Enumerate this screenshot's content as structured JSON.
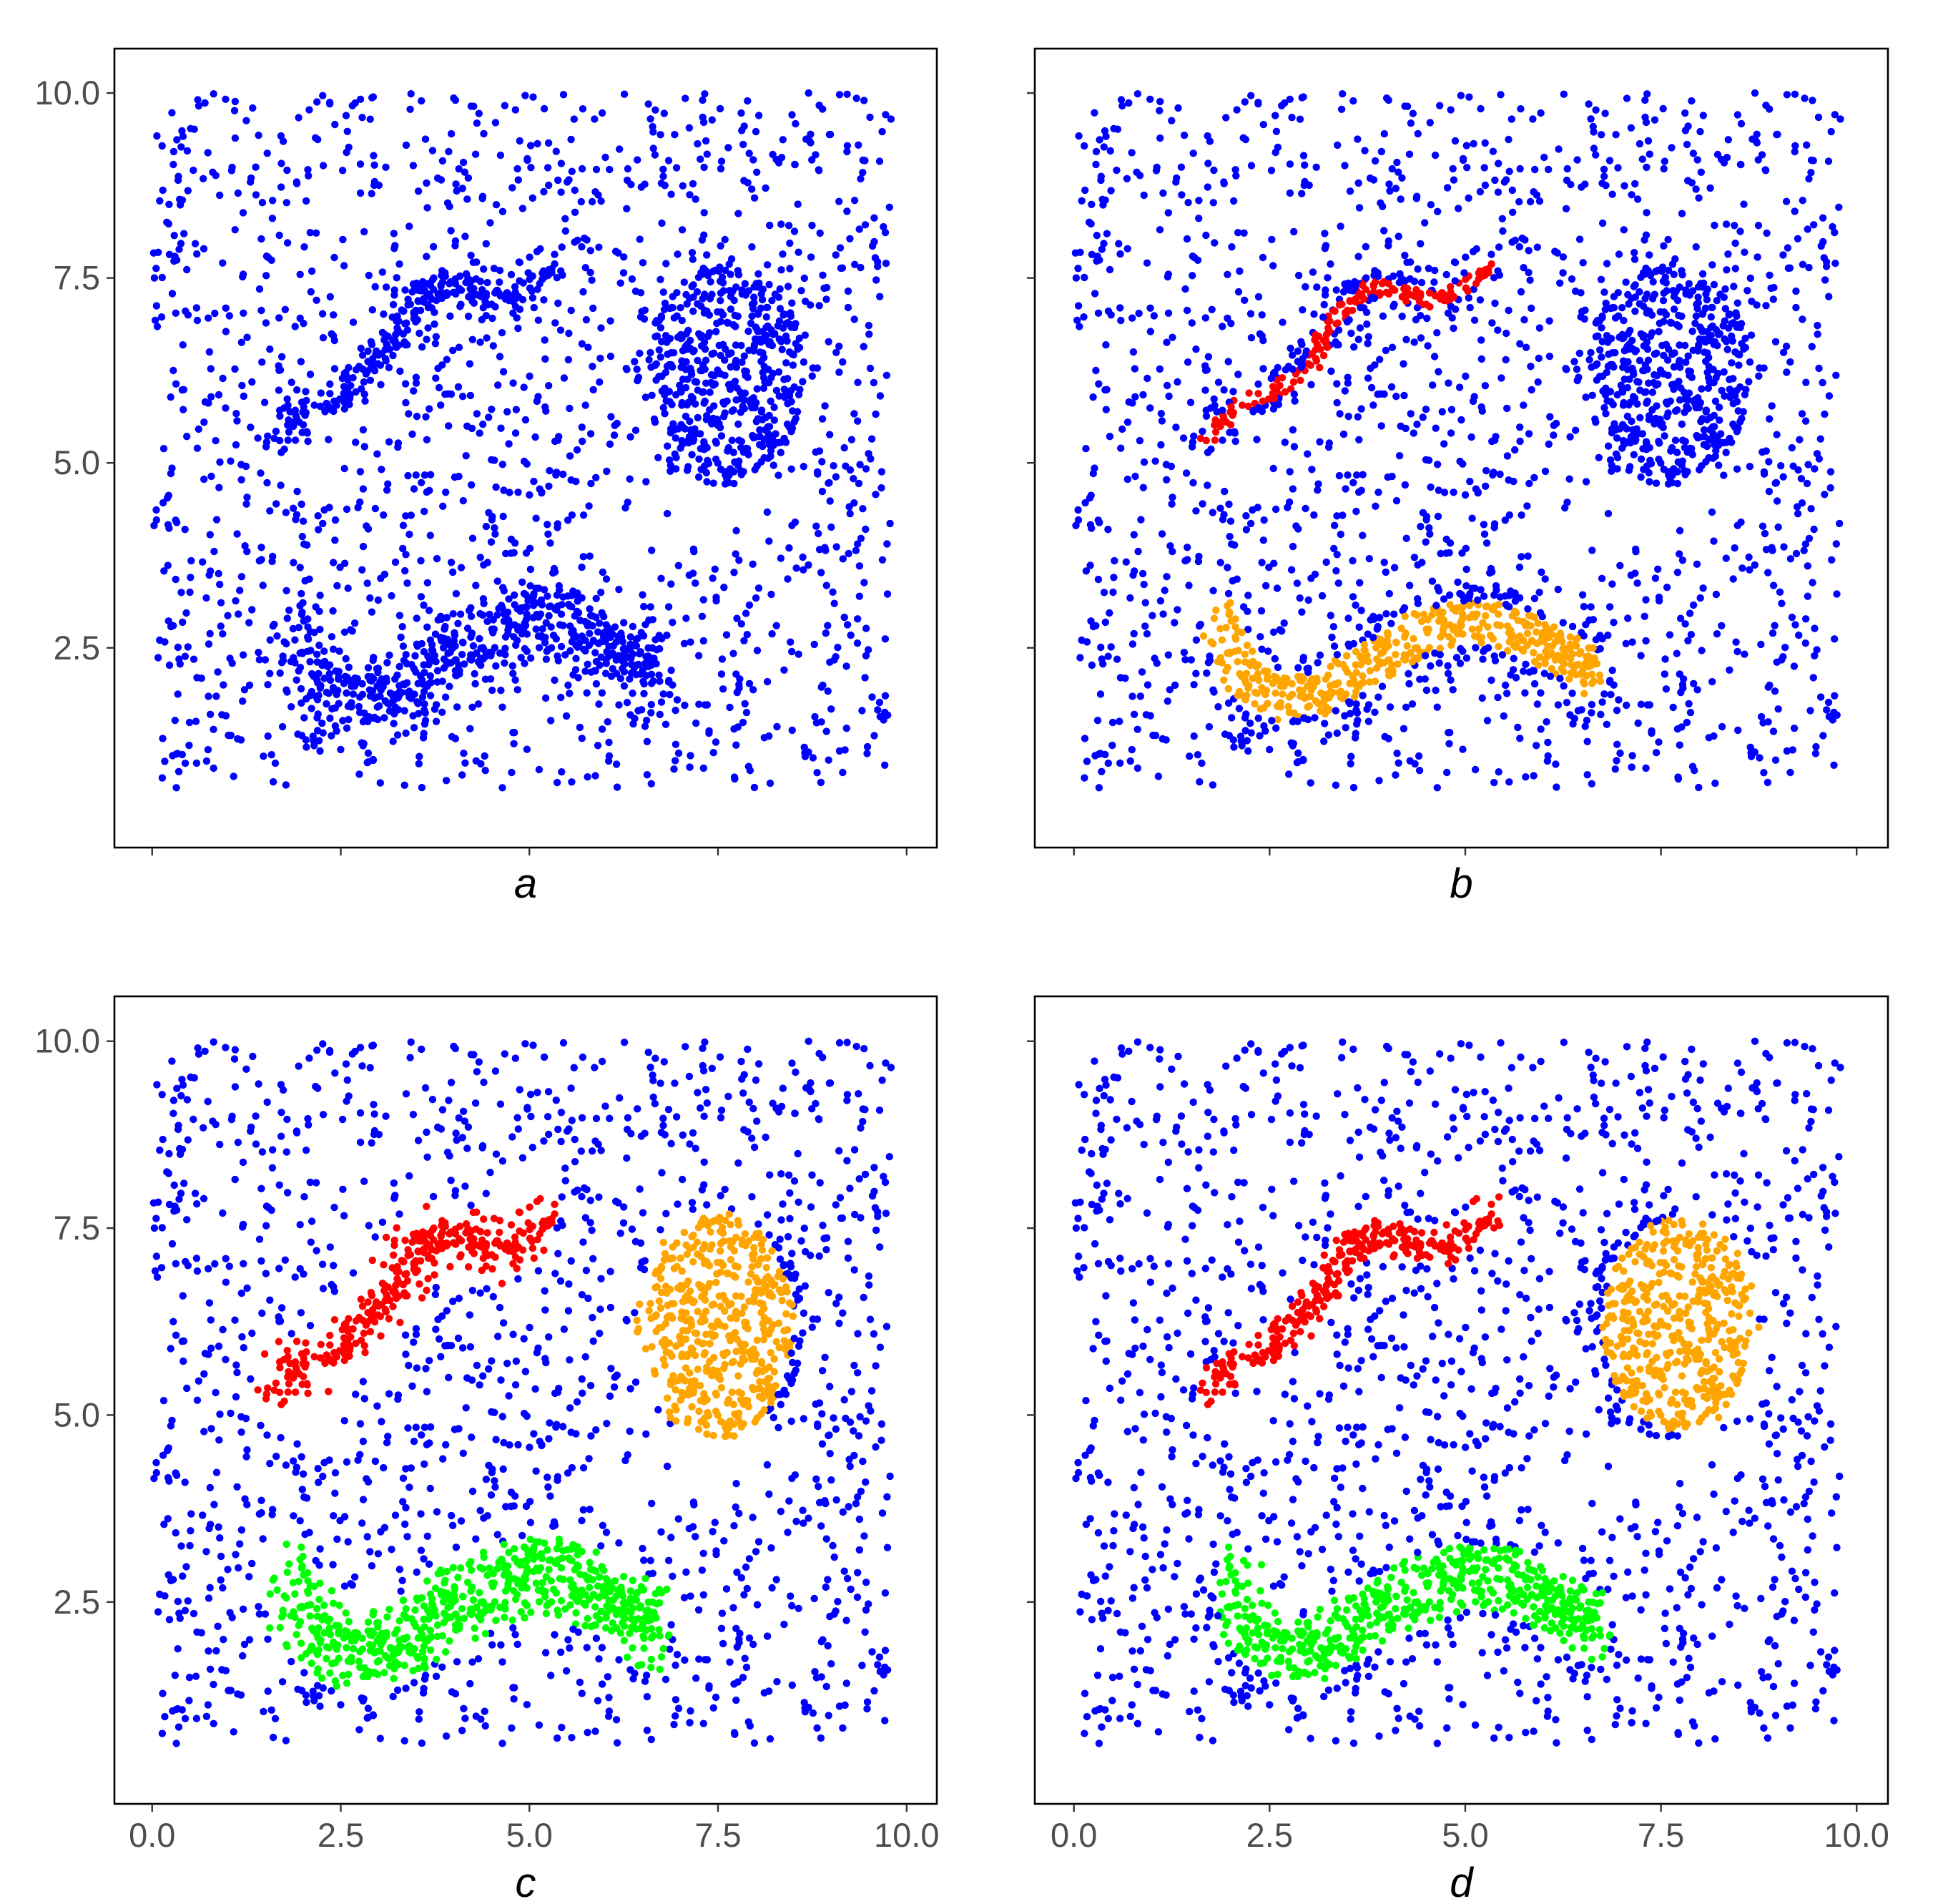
{
  "chart_data": [
    {
      "type": "scatter",
      "panel": "a",
      "caption": "a",
      "xlim": [
        -0.5,
        10.4
      ],
      "ylim": [
        -0.2,
        10.6
      ],
      "x_ticks": [
        0.0,
        2.5,
        5.0,
        7.5,
        10.0
      ],
      "x_tick_labels": [],
      "y_ticks": [
        2.5,
        5.0,
        7.5,
        10.0
      ],
      "y_tick_labels": [
        "2.5",
        "5.0",
        "7.5",
        "10.0"
      ],
      "grid": false,
      "legend": "none",
      "point_color": "#0000ff",
      "clusters": []
    },
    {
      "type": "scatter",
      "panel": "b",
      "caption": "b",
      "xlim": [
        -0.5,
        10.4
      ],
      "ylim": [
        -0.2,
        10.6
      ],
      "x_ticks": [
        0.0,
        2.5,
        5.0,
        7.5,
        10.0
      ],
      "x_tick_labels": [],
      "y_ticks": [
        2.5,
        5.0,
        7.5,
        10.0
      ],
      "y_tick_labels": [],
      "grid": false,
      "legend": "none",
      "point_color": "#0000ff",
      "clusters": [
        {
          "color": "#ff0000",
          "shape": "line",
          "spine": [
            [
              1.7,
              5.3
            ],
            [
              2.1,
              5.75
            ],
            [
              2.6,
              6.0
            ],
            [
              3.0,
              6.2
            ],
            [
              3.2,
              6.8
            ],
            [
              3.5,
              7.1
            ],
            [
              3.8,
              7.4
            ],
            [
              4.2,
              7.3
            ],
            [
              4.6,
              7.2
            ],
            [
              5.0,
              7.4
            ],
            [
              5.3,
              7.7
            ]
          ],
          "spread": 0.07
        },
        {
          "color": "#ffa500",
          "shape": "line",
          "spine": [
            [
              1.8,
              2.9
            ],
            [
              2.2,
              2.1
            ],
            [
              2.7,
              1.8
            ],
            [
              3.2,
              1.9
            ],
            [
              3.6,
              2.2
            ],
            [
              4.0,
              2.4
            ],
            [
              4.4,
              2.7
            ],
            [
              4.9,
              2.85
            ],
            [
              5.4,
              2.8
            ],
            [
              5.9,
              2.6
            ],
            [
              6.3,
              2.4
            ],
            [
              6.6,
              2.15
            ]
          ],
          "spread": 0.18
        }
      ]
    },
    {
      "type": "scatter",
      "panel": "c",
      "caption": "c",
      "xlim": [
        -0.5,
        10.4
      ],
      "ylim": [
        -0.2,
        10.6
      ],
      "x_ticks": [
        0.0,
        2.5,
        5.0,
        7.5,
        10.0
      ],
      "x_tick_labels": [
        "0.0",
        "2.5",
        "5.0",
        "7.5",
        "10.0"
      ],
      "y_ticks": [
        2.5,
        5.0,
        7.5,
        10.0
      ],
      "y_tick_labels": [
        "2.5",
        "5.0",
        "7.5",
        "10.0"
      ],
      "grid": false,
      "legend": "none",
      "point_color": "#0000ff",
      "clusters": [
        {
          "color": "#ff0000",
          "shape": "line",
          "spine": [
            [
              1.5,
              5.5
            ],
            [
              2.0,
              5.6
            ],
            [
              2.5,
              5.9
            ],
            [
              2.9,
              6.3
            ],
            [
              3.2,
              6.8
            ],
            [
              3.5,
              7.2
            ],
            [
              3.8,
              7.4
            ],
            [
              4.2,
              7.3
            ],
            [
              4.6,
              7.2
            ],
            [
              5.0,
              7.4
            ],
            [
              5.2,
              7.7
            ]
          ],
          "spread": 0.28
        },
        {
          "color": "#ffa500",
          "shape": "blob",
          "center": [
            7.45,
            6.2
          ],
          "radius": [
            1.05,
            1.55
          ]
        },
        {
          "color": "#00ff00",
          "shape": "line",
          "spine": [
            [
              1.7,
              2.8
            ],
            [
              2.1,
              2.2
            ],
            [
              2.6,
              1.8
            ],
            [
              3.1,
              1.9
            ],
            [
              3.6,
              2.2
            ],
            [
              4.0,
              2.45
            ],
            [
              4.5,
              2.7
            ],
            [
              5.0,
              2.85
            ],
            [
              5.5,
              2.8
            ],
            [
              6.0,
              2.6
            ],
            [
              6.4,
              2.35
            ],
            [
              6.7,
              2.1
            ]
          ],
          "spread": 0.33
        }
      ]
    },
    {
      "type": "scatter",
      "panel": "d",
      "caption": "d",
      "xlim": [
        -0.5,
        10.4
      ],
      "ylim": [
        -0.2,
        10.6
      ],
      "x_ticks": [
        0.0,
        2.5,
        5.0,
        7.5,
        10.0
      ],
      "x_tick_labels": [
        "0.0",
        "2.5",
        "5.0",
        "7.5",
        "10.0"
      ],
      "y_ticks": [
        2.5,
        5.0,
        7.5,
        10.0
      ],
      "y_tick_labels": [],
      "grid": false,
      "legend": "none",
      "point_color": "#0000ff",
      "clusters": [
        {
          "color": "#ff0000",
          "shape": "line",
          "spine": [
            [
              1.7,
              5.3
            ],
            [
              2.1,
              5.7
            ],
            [
              2.6,
              6.0
            ],
            [
              3.0,
              6.3
            ],
            [
              3.3,
              6.9
            ],
            [
              3.6,
              7.3
            ],
            [
              3.9,
              7.35
            ],
            [
              4.3,
              7.3
            ],
            [
              4.7,
              7.2
            ],
            [
              5.0,
              7.4
            ],
            [
              5.3,
              7.7
            ]
          ],
          "spread": 0.16
        },
        {
          "color": "#ffa500",
          "shape": "blob",
          "center": [
            7.75,
            6.2
          ],
          "radius": [
            1.0,
            1.45
          ]
        },
        {
          "color": "#00ff00",
          "shape": "line",
          "spine": [
            [
              2.0,
              2.8
            ],
            [
              2.3,
              2.2
            ],
            [
              2.7,
              1.85
            ],
            [
              3.1,
              1.9
            ],
            [
              3.6,
              2.2
            ],
            [
              4.0,
              2.45
            ],
            [
              4.5,
              2.7
            ],
            [
              5.0,
              2.85
            ],
            [
              5.5,
              2.8
            ],
            [
              6.0,
              2.6
            ],
            [
              6.4,
              2.35
            ],
            [
              6.7,
              2.1
            ]
          ],
          "spread": 0.28
        }
      ]
    }
  ]
}
